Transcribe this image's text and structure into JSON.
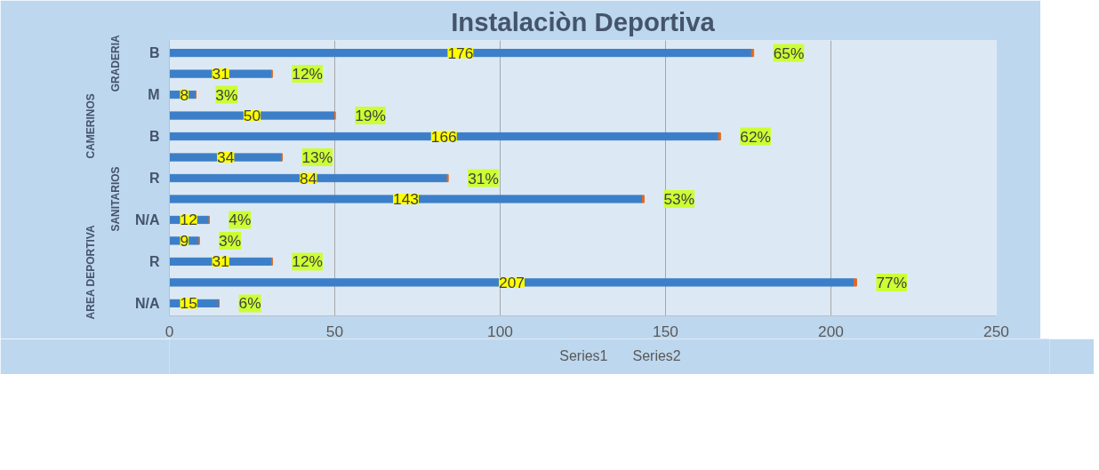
{
  "chart_data": {
    "type": "bar",
    "orientation": "horizontal",
    "stacked": true,
    "title": "Instalaciòn Deportiva",
    "categories": [
      "B",
      null,
      "M",
      null,
      "B",
      null,
      "R",
      null,
      "N/A",
      null,
      "R",
      null,
      "N/A"
    ],
    "annotations": [
      "GRADERIA",
      "CAMERINOS",
      "SANITARIOS",
      "AREA DEPORTIVA"
    ],
    "series": [
      {
        "name": "Series1",
        "color": "#3c7fc8",
        "values": [
          176,
          31,
          8,
          50,
          166,
          34,
          84,
          143,
          12,
          9,
          31,
          207,
          15
        ],
        "value_labels": [
          "176",
          "31",
          "8",
          "50",
          "166",
          "34",
          "84",
          "143",
          "12",
          "9",
          "31",
          "207",
          "15"
        ]
      },
      {
        "name": "Series2",
        "color": "#e06a20",
        "values": [
          0.65,
          0.12,
          0.03,
          0.19,
          0.62,
          0.13,
          0.31,
          0.53,
          0.04,
          0.03,
          0.12,
          0.77,
          0.06
        ],
        "value_labels": [
          "65%",
          "12%",
          "3%",
          "19%",
          "62%",
          "13%",
          "31%",
          "53%",
          "4%",
          "3%",
          "12%",
          "77%",
          "6%"
        ]
      }
    ],
    "xlim": [
      0,
      250
    ],
    "xticks": [
      0,
      50,
      100,
      150,
      200,
      250
    ],
    "grid": "x",
    "legend": "bottom"
  }
}
